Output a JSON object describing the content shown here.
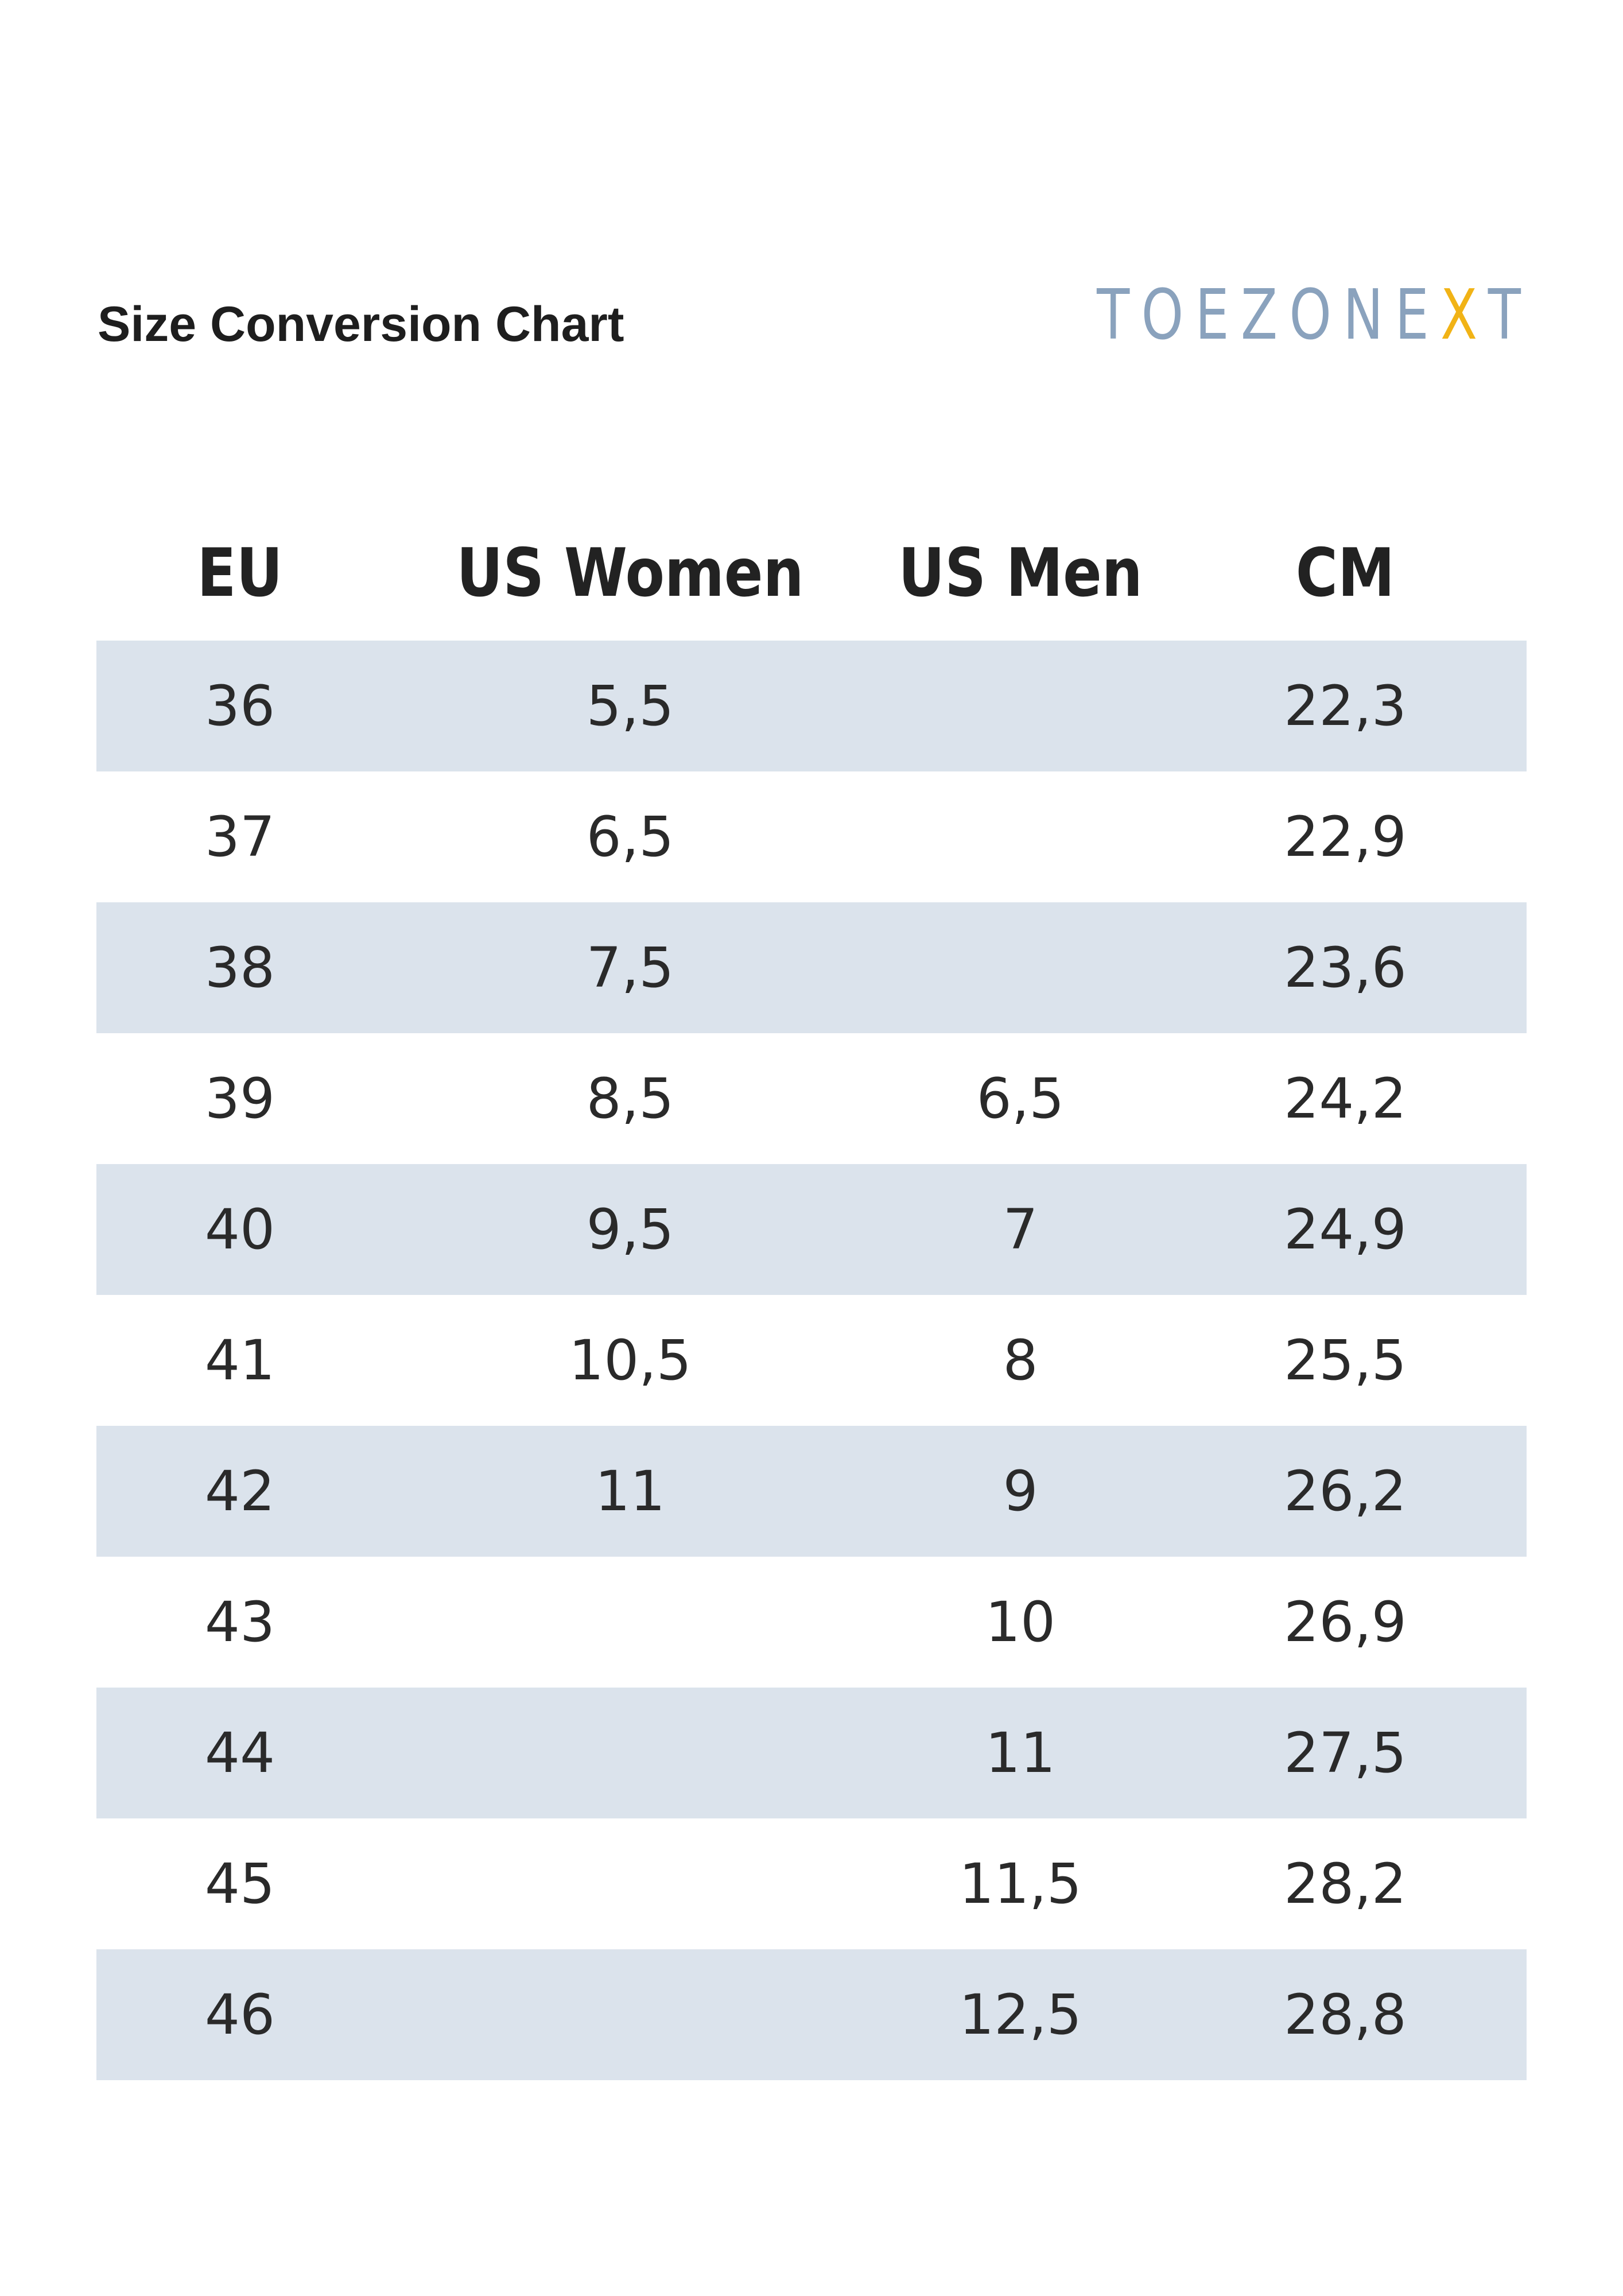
{
  "header": {
    "title": "Size Conversion Chart",
    "brand": {
      "prefix": "TOEZONE",
      "accent": "X",
      "suffix": "T",
      "color": "#8aa2bd",
      "accent_color": "#f1b316"
    }
  },
  "table": {
    "shade_color": "#dbe3ec",
    "columns": [
      "EU",
      "US Women",
      "US Men",
      "CM"
    ],
    "rows": [
      {
        "eu": "36",
        "us_women": "5,5",
        "us_men": "",
        "cm": "22,3"
      },
      {
        "eu": "37",
        "us_women": "6,5",
        "us_men": "",
        "cm": "22,9"
      },
      {
        "eu": "38",
        "us_women": "7,5",
        "us_men": "",
        "cm": "23,6"
      },
      {
        "eu": "39",
        "us_women": "8,5",
        "us_men": "6,5",
        "cm": "24,2"
      },
      {
        "eu": "40",
        "us_women": "9,5",
        "us_men": "7",
        "cm": "24,9"
      },
      {
        "eu": "41",
        "us_women": "10,5",
        "us_men": "8",
        "cm": "25,5"
      },
      {
        "eu": "42",
        "us_women": "11",
        "us_men": "9",
        "cm": "26,2"
      },
      {
        "eu": "43",
        "us_women": "",
        "us_men": "10",
        "cm": "26,9"
      },
      {
        "eu": "44",
        "us_women": "",
        "us_men": "11",
        "cm": "27,5"
      },
      {
        "eu": "45",
        "us_women": "",
        "us_men": "11,5",
        "cm": "28,2"
      },
      {
        "eu": "46",
        "us_women": "",
        "us_men": "12,5",
        "cm": "28,8"
      }
    ]
  }
}
